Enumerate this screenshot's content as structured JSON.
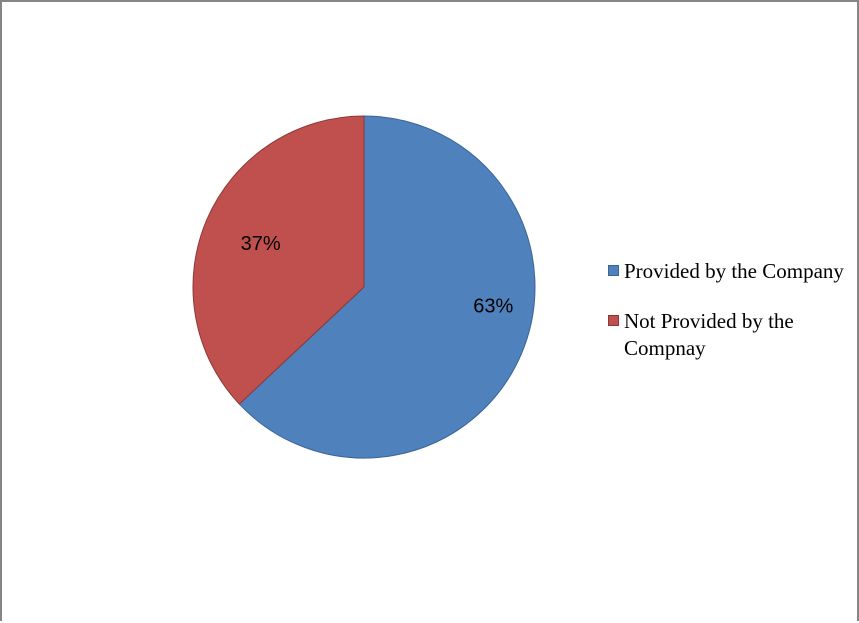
{
  "chart_data": {
    "type": "pie",
    "title": "",
    "categories": [
      "Provided by the Company",
      "Not Provided by the Compnay"
    ],
    "values": [
      63,
      37
    ],
    "data_labels": [
      "63%",
      "37%"
    ],
    "colors": [
      "#4f81bd",
      "#c0504d"
    ],
    "border_colors": [
      "#3a6496",
      "#8c3836"
    ],
    "legend_position": "right"
  }
}
